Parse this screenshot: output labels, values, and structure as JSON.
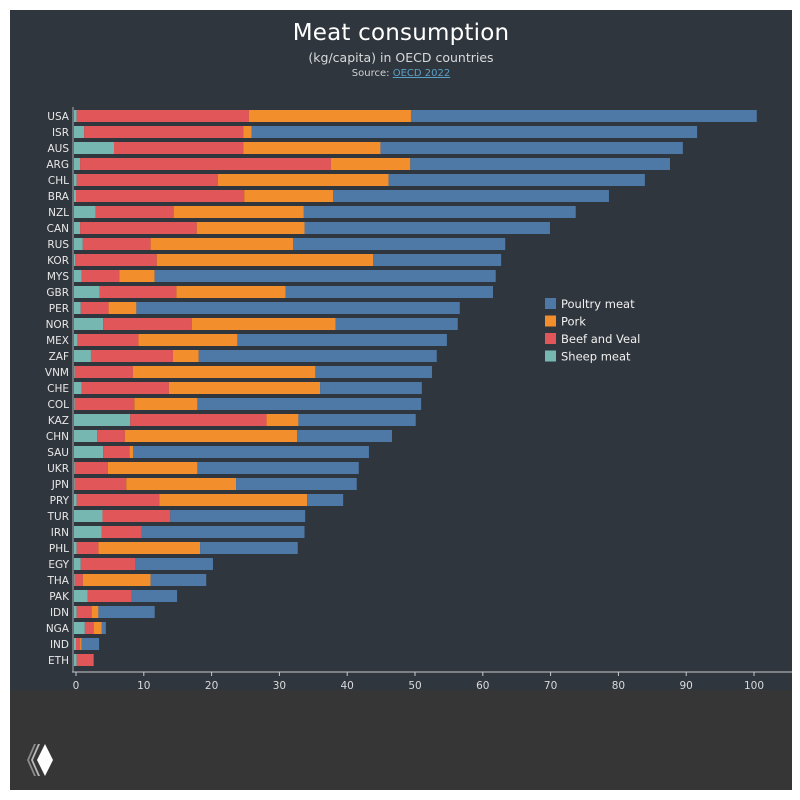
{
  "header": {
    "title": "Meat consumption",
    "subtitle": "(kg/capita) in OECD countries",
    "source_prefix": "Source: ",
    "source_link": "OECD 2022"
  },
  "chart_data": {
    "type": "bar",
    "orientation": "horizontal",
    "stacked": true,
    "title": "Meat consumption",
    "subtitle": "(kg/capita) in OECD countries",
    "xlabel": "",
    "ylabel": "",
    "xlim": [
      0,
      105
    ],
    "xticks": [
      0,
      10,
      20,
      30,
      40,
      50,
      60,
      70,
      80,
      90,
      100
    ],
    "legend_position": "right",
    "categories": [
      "USA",
      "ISR",
      "AUS",
      "ARG",
      "CHL",
      "BRA",
      "NZL",
      "CAN",
      "RUS",
      "KOR",
      "MYS",
      "GBR",
      "PER",
      "NOR",
      "MEX",
      "ZAF",
      "VNM",
      "CHE",
      "COL",
      "KAZ",
      "CHN",
      "SAU",
      "UKR",
      "JPN",
      "PRY",
      "TUR",
      "IRN",
      "PHL",
      "EGY",
      "THA",
      "PAK",
      "IDN",
      "NGA",
      "IND",
      "ETH"
    ],
    "series": [
      {
        "name": "Sheep meat",
        "color": "#76b7b2",
        "values": [
          0.4,
          1.5,
          5.9,
          0.9,
          0.4,
          0.3,
          3.2,
          0.9,
          1.3,
          0.2,
          1.1,
          3.8,
          1.0,
          4.3,
          0.5,
          2.5,
          0.1,
          1.1,
          0.1,
          8.3,
          3.4,
          4.3,
          0.1,
          0.1,
          0.4,
          4.2,
          4.1,
          0.4,
          1.0,
          0.1,
          2.0,
          0.4,
          1.6,
          0.3,
          0.4
        ]
      },
      {
        "name": "Beef and Veal",
        "color": "#e15759",
        "values": [
          25.4,
          23.5,
          19.1,
          37.0,
          20.8,
          24.8,
          11.5,
          17.2,
          10.0,
          12.0,
          5.6,
          11.3,
          4.1,
          13.1,
          9.0,
          12.1,
          8.6,
          12.9,
          8.8,
          20.1,
          4.1,
          3.9,
          4.9,
          7.6,
          12.2,
          10.0,
          5.9,
          3.2,
          8.0,
          1.2,
          6.5,
          2.2,
          1.3,
          0.6,
          2.5
        ]
      },
      {
        "name": "Pork",
        "color": "#f28e2b",
        "values": [
          23.9,
          1.2,
          20.2,
          11.7,
          25.2,
          13.1,
          19.2,
          15.9,
          21.0,
          31.9,
          5.2,
          16.1,
          4.1,
          21.2,
          14.6,
          3.8,
          26.9,
          22.3,
          9.3,
          4.7,
          25.4,
          0.5,
          13.2,
          16.2,
          21.8,
          0,
          0,
          15.0,
          0,
          10.0,
          0,
          1.0,
          1.2,
          0.2,
          0
        ]
      },
      {
        "name": "Poultry meat",
        "color": "#4e79a7",
        "values": [
          51.0,
          65.7,
          44.6,
          38.3,
          37.8,
          40.7,
          40.1,
          36.2,
          31.3,
          18.9,
          50.3,
          30.6,
          47.7,
          18.0,
          30.9,
          35.1,
          17.2,
          15.0,
          33.0,
          17.3,
          14.0,
          34.8,
          23.8,
          17.8,
          5.3,
          19.9,
          24.0,
          14.4,
          11.5,
          8.2,
          6.7,
          8.3,
          0.6,
          2.6,
          0
        ]
      }
    ],
    "legend": [
      "Poultry meat",
      "Pork",
      "Beef and Veal",
      "Sheep meat"
    ]
  }
}
